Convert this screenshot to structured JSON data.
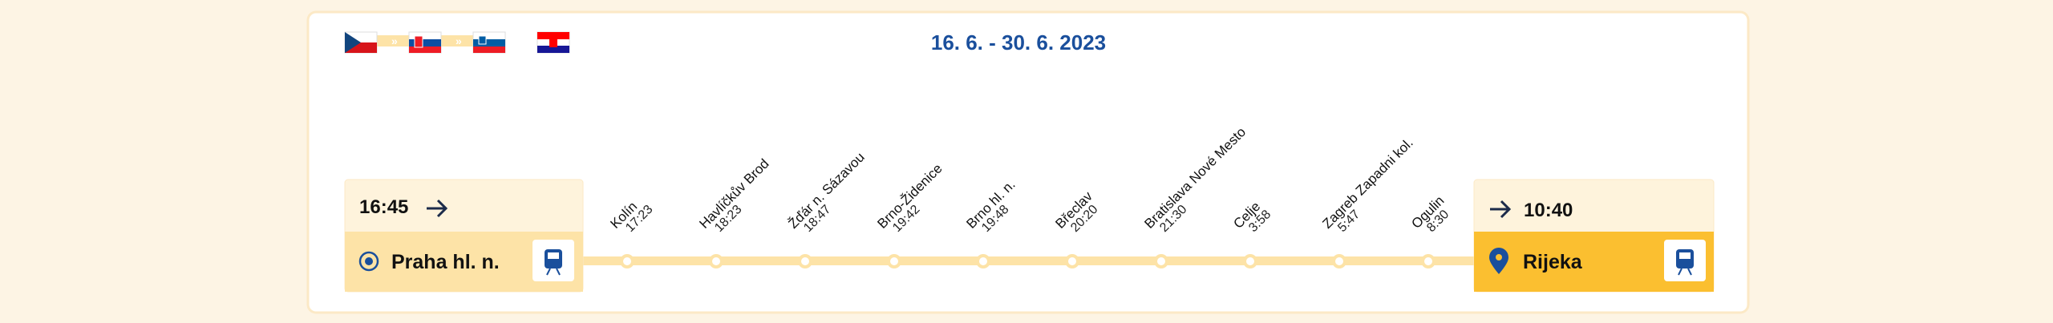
{
  "date": "16. 6. - 30. 6. 2023",
  "departure": {
    "time": "16:45",
    "station": "Praha hl. n."
  },
  "arrival": {
    "time": "10:40",
    "station": "Rijeka"
  },
  "stops": [
    {
      "name": "Kolín",
      "time": "17:23"
    },
    {
      "name": "Havlíčkův Brod",
      "time": "18:23"
    },
    {
      "name": "Žďár n. Sázavou",
      "time": "18:47"
    },
    {
      "name": "Brno-Židenice",
      "time": "19:42"
    },
    {
      "name": "Brno hl. n.",
      "time": "19:48"
    },
    {
      "name": "Břeclav",
      "time": "20:20"
    },
    {
      "name": "Bratislava Nové Mesto",
      "time": "21:30"
    },
    {
      "name": "Celje",
      "time": "3:58"
    },
    {
      "name": "Zagreb Zapadni kol.",
      "time": "5:47"
    },
    {
      "name": "Ogulin",
      "time": "8:30"
    }
  ]
}
